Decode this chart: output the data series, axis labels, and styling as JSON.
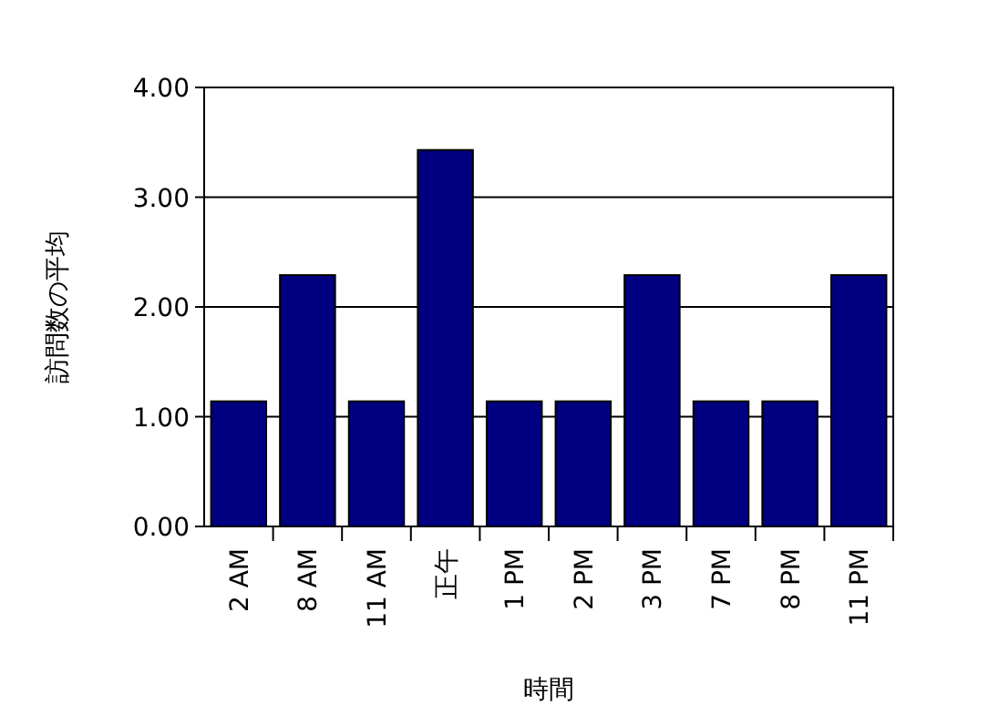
{
  "chart_data": {
    "type": "bar",
    "xlabel": "時間",
    "ylabel": "訪問数の平均",
    "categories": [
      "2 AM",
      "8 AM",
      "11 AM",
      "正午",
      "1 PM",
      "2 PM",
      "3 PM",
      "7 PM",
      "8 PM",
      "11 PM"
    ],
    "values": [
      1.14,
      2.29,
      1.14,
      3.43,
      1.14,
      1.14,
      2.29,
      1.14,
      1.14,
      2.29
    ],
    "color": "#000080",
    "ylim": [
      0,
      4
    ],
    "yticks": [
      {
        "value": 0,
        "label": "0.00"
      },
      {
        "value": 1,
        "label": "1.00"
      },
      {
        "value": 2,
        "label": "2.00"
      },
      {
        "value": 3,
        "label": "3.00"
      },
      {
        "value": 4,
        "label": "4.00"
      }
    ],
    "grid": "y"
  }
}
